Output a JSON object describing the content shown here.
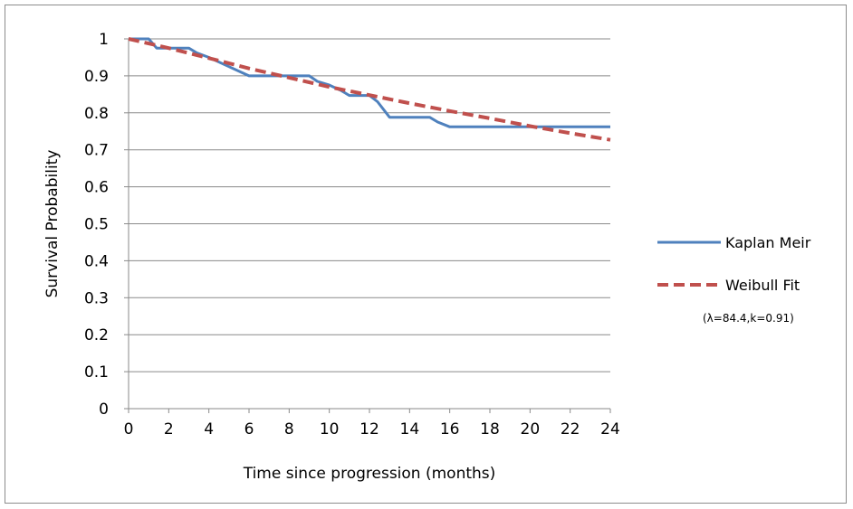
{
  "chart_data": {
    "type": "line",
    "title": "",
    "xlabel": "Time since progression (months)",
    "ylabel": "Survival Probability",
    "xlim": [
      0,
      24
    ],
    "ylim": [
      0,
      1
    ],
    "x_ticks": [
      0,
      2,
      4,
      6,
      8,
      10,
      12,
      14,
      16,
      18,
      20,
      22,
      24
    ],
    "y_ticks": [
      0,
      0.1,
      0.2,
      0.3,
      0.4,
      0.5,
      0.6,
      0.7,
      0.8,
      0.9,
      1
    ],
    "grid": "horizontal",
    "legend_position": "right",
    "legend_note": "(λ=84.4,k=0.91)",
    "series": [
      {
        "name": "Kaplan Meir",
        "style": "step",
        "color": "#4f81bd",
        "x": [
          0,
          1,
          1.4,
          3,
          3.4,
          4,
          5,
          6,
          7,
          8,
          9,
          9.4,
          10,
          10.6,
          11,
          12,
          12.4,
          13,
          14,
          15,
          15.4,
          16,
          18,
          20,
          22,
          24
        ],
        "y": [
          1,
          1,
          0.975,
          0.975,
          0.962,
          0.95,
          0.925,
          0.9,
          0.9,
          0.9,
          0.9,
          0.885,
          0.875,
          0.86,
          0.847,
          0.847,
          0.83,
          0.788,
          0.788,
          0.788,
          0.775,
          0.762,
          0.762,
          0.762,
          0.762,
          0.762
        ]
      },
      {
        "name": "Weibull Fit",
        "style": "dashed",
        "color": "#c0504d",
        "x": [
          0,
          2,
          4,
          6,
          8,
          10,
          12,
          14,
          16,
          18,
          20,
          22,
          24
        ],
        "y": [
          1,
          0.975,
          0.948,
          0.92,
          0.895,
          0.87,
          0.848,
          0.826,
          0.805,
          0.785,
          0.764,
          0.745,
          0.727
        ]
      }
    ]
  }
}
